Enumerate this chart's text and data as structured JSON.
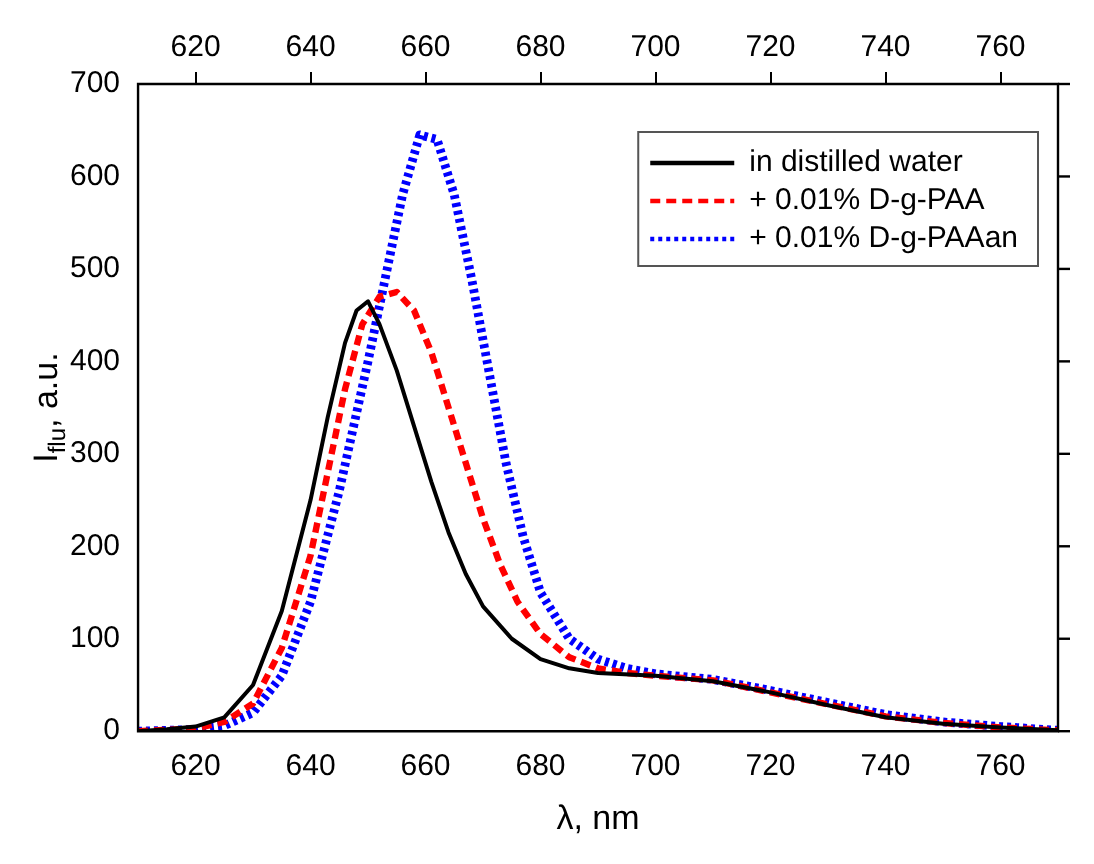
{
  "chart_data": {
    "type": "line",
    "xlabel": "λ, nm",
    "ylabel": "I$_{flu}$, a.u.",
    "xlim": [
      610,
      770
    ],
    "xticks": [
      620,
      640,
      660,
      680,
      700,
      720,
      740,
      760
    ],
    "x2lim": [
      610,
      770
    ],
    "x2ticks": [
      620,
      640,
      660,
      680,
      700,
      720,
      740,
      760
    ],
    "ylim": [
      0,
      700
    ],
    "yticks": [
      0,
      100,
      200,
      300,
      400,
      500,
      600,
      700
    ],
    "grid": false,
    "legend": "top right",
    "marker": "none",
    "series": [
      {
        "name": "in distilled water",
        "color": "#000000",
        "line_style": "solid",
        "x": [
          610,
          615,
          620,
          625,
          630,
          635,
          640,
          643,
          646,
          648,
          650,
          652,
          655,
          658,
          661,
          664,
          667,
          670,
          675,
          680,
          685,
          690,
          700,
          710,
          720,
          730,
          740,
          750,
          760,
          770
        ],
        "values": [
          0,
          2,
          5,
          15,
          50,
          130,
          250,
          340,
          420,
          455,
          465,
          440,
          390,
          330,
          270,
          215,
          170,
          135,
          100,
          78,
          68,
          63,
          60,
          54,
          42,
          28,
          15,
          8,
          4,
          1
        ]
      },
      {
        "name": "+ 0.01% D-g-PAA",
        "color": "#ff0000",
        "line_style": "dashed",
        "x": [
          610,
          620,
          625,
          630,
          635,
          640,
          643,
          646,
          649,
          652,
          655,
          658,
          661,
          664,
          667,
          670,
          673,
          676,
          680,
          685,
          690,
          695,
          700,
          710,
          720,
          730,
          740,
          750,
          760,
          770
        ],
        "values": [
          0,
          3,
          10,
          30,
          90,
          190,
          280,
          370,
          440,
          470,
          475,
          455,
          410,
          350,
          290,
          230,
          180,
          140,
          105,
          80,
          68,
          63,
          60,
          55,
          42,
          29,
          16,
          9,
          4,
          1
        ]
      },
      {
        "name": "+ 0.01% D-g-PAAan",
        "color": "#0000ff",
        "line_style": "dotted",
        "x": [
          610,
          620,
          625,
          630,
          635,
          640,
          645,
          650,
          653,
          656,
          659,
          662,
          665,
          668,
          671,
          674,
          677,
          680,
          685,
          690,
          695,
          700,
          710,
          720,
          730,
          740,
          750,
          760,
          770
        ],
        "values": [
          0,
          2,
          6,
          20,
          60,
          140,
          260,
          400,
          490,
          580,
          645,
          640,
          580,
          490,
          390,
          290,
          210,
          150,
          100,
          78,
          68,
          62,
          56,
          44,
          31,
          18,
          10,
          5,
          1
        ]
      }
    ]
  }
}
